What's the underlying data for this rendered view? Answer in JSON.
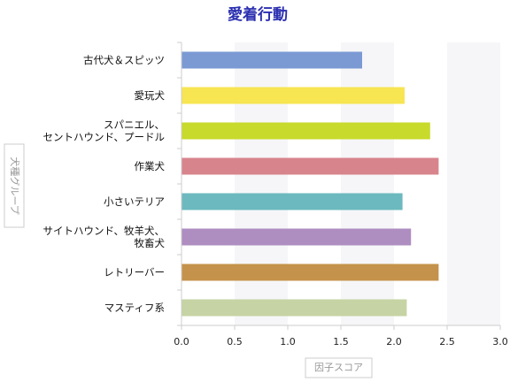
{
  "chart_data": {
    "type": "bar",
    "orientation": "horizontal",
    "title": "愛着行動",
    "xlabel": "因子スコア",
    "ylabel": "犬種グループ",
    "xlim": [
      0,
      3.0
    ],
    "xticks": [
      "0.0",
      "0.5",
      "1.0",
      "1.5",
      "2.0",
      "2.5",
      "3.0"
    ],
    "categories": [
      [
        "古代犬＆スピッツ"
      ],
      [
        "愛玩犬"
      ],
      [
        "スパニエル、",
        "セントハウンド、プードル"
      ],
      [
        "作業犬"
      ],
      [
        "小さいテリア"
      ],
      [
        "サイトハウンド、牧羊犬、",
        "牧畜犬"
      ],
      [
        "レトリーバー"
      ],
      [
        "マスティフ系"
      ]
    ],
    "values": [
      1.7,
      2.1,
      2.34,
      2.42,
      2.08,
      2.16,
      2.42,
      2.12
    ],
    "colors": [
      "#7b9ad4",
      "#f7e552",
      "#c8da2b",
      "#d8848c",
      "#6cb9bf",
      "#ae8dc0",
      "#c4924a",
      "#c6d3a4"
    ],
    "background_bands": true,
    "grid": false,
    "legend": "none"
  }
}
